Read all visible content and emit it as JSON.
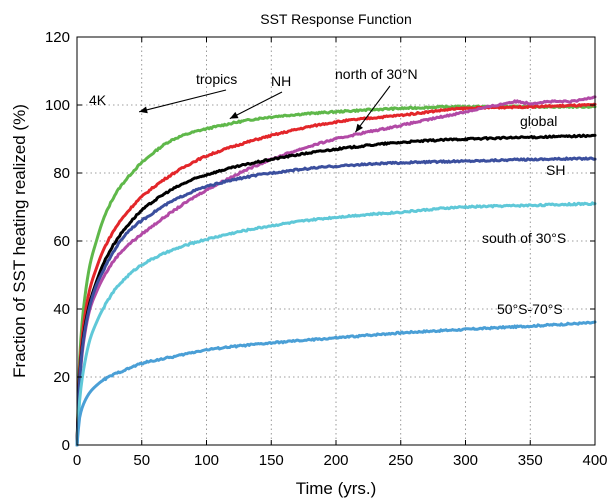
{
  "chart_data": {
    "type": "line",
    "title": "SST Response Function",
    "xlabel": "Time (yrs.)",
    "ylabel": "Fraction of SST heating realized (%)",
    "xlim": [
      0,
      400
    ],
    "ylim": [
      0,
      120
    ],
    "xticks": [
      0,
      50,
      100,
      150,
      200,
      250,
      300,
      350,
      400
    ],
    "yticks": [
      0,
      20,
      40,
      60,
      80,
      100,
      120
    ],
    "grid": true,
    "legend": "none",
    "series": [
      {
        "name": "tropics",
        "color": "#5fb84a",
        "x": [
          0,
          2,
          5,
          10,
          15,
          20,
          30,
          40,
          50,
          75,
          100,
          150,
          200,
          250,
          300,
          350,
          400
        ],
        "y": [
          0,
          25,
          40,
          53,
          60,
          66,
          74,
          79,
          83,
          90,
          93,
          96.5,
          98,
          99,
          99.5,
          99.5,
          99.5
        ]
      },
      {
        "name": "NH",
        "color": "#e3262a",
        "x": [
          0,
          2,
          5,
          10,
          15,
          20,
          30,
          40,
          50,
          75,
          100,
          150,
          200,
          250,
          300,
          350,
          400
        ],
        "y": [
          0,
          22,
          35,
          46,
          52,
          57,
          64,
          69,
          73,
          80,
          85,
          91,
          95,
          97,
          99,
          99.5,
          100
        ]
      },
      {
        "name": "north of 30°N",
        "color": "#b24aa6",
        "x": [
          0,
          2,
          5,
          10,
          15,
          20,
          30,
          40,
          50,
          75,
          100,
          150,
          200,
          250,
          300,
          325,
          340,
          350,
          365,
          380,
          400
        ],
        "y": [
          0,
          18,
          30,
          40,
          45,
          49,
          55,
          59,
          62,
          69,
          75,
          84,
          90,
          94,
          98,
          100,
          101,
          100.5,
          101,
          101,
          102.5
        ]
      },
      {
        "name": "global",
        "color": "#000000",
        "x": [
          0,
          2,
          5,
          10,
          15,
          20,
          30,
          40,
          50,
          75,
          100,
          150,
          200,
          250,
          300,
          350,
          400
        ],
        "y": [
          0,
          20,
          32,
          42,
          48,
          53,
          60,
          65,
          69,
          75.5,
          79.5,
          84,
          87,
          89,
          90,
          90.5,
          91
        ]
      },
      {
        "name": "SH",
        "color": "#3b4f9e",
        "x": [
          0,
          2,
          5,
          10,
          15,
          20,
          30,
          40,
          50,
          75,
          100,
          150,
          200,
          250,
          300,
          350,
          400
        ],
        "y": [
          0,
          19,
          31,
          41,
          47,
          51,
          58,
          63,
          66,
          72,
          76,
          80,
          82,
          83,
          83.5,
          84,
          84.3
        ]
      },
      {
        "name": "south of 30°S",
        "color": "#5fc8d8",
        "x": [
          0,
          2,
          5,
          10,
          15,
          20,
          30,
          40,
          50,
          75,
          100,
          150,
          200,
          250,
          300,
          350,
          400
        ],
        "y": [
          0,
          13,
          22,
          31,
          36,
          40,
          46,
          50,
          53,
          57.5,
          60.5,
          64.5,
          67,
          68.5,
          70,
          70.5,
          71
        ]
      },
      {
        "name": "50°S-70°S",
        "color": "#4a9fd6",
        "x": [
          0,
          2,
          5,
          10,
          15,
          20,
          30,
          40,
          50,
          75,
          100,
          150,
          200,
          250,
          300,
          350,
          400
        ],
        "y": [
          0,
          8,
          12,
          15.5,
          17.5,
          19,
          21,
          22.5,
          24,
          26,
          28,
          30,
          31.5,
          33,
          34,
          35,
          36
        ]
      }
    ],
    "annotations": [
      {
        "text": "4K"
      },
      {
        "text": "tropics",
        "target_series": "tropics",
        "target": [
          48,
          98
        ]
      },
      {
        "text": "NH",
        "target_series": "NH",
        "target": [
          118,
          96
        ]
      },
      {
        "text": "north of 30°N",
        "target_series": "north of 30°N",
        "target": [
          215,
          92
        ]
      },
      {
        "text": "global",
        "target_series": "global"
      },
      {
        "text": "SH",
        "target_series": "SH"
      },
      {
        "text": "south of 30°S",
        "target_series": "south of 30°S"
      },
      {
        "text": "50°S-70°S",
        "target_series": "50°S-70°S"
      }
    ]
  }
}
